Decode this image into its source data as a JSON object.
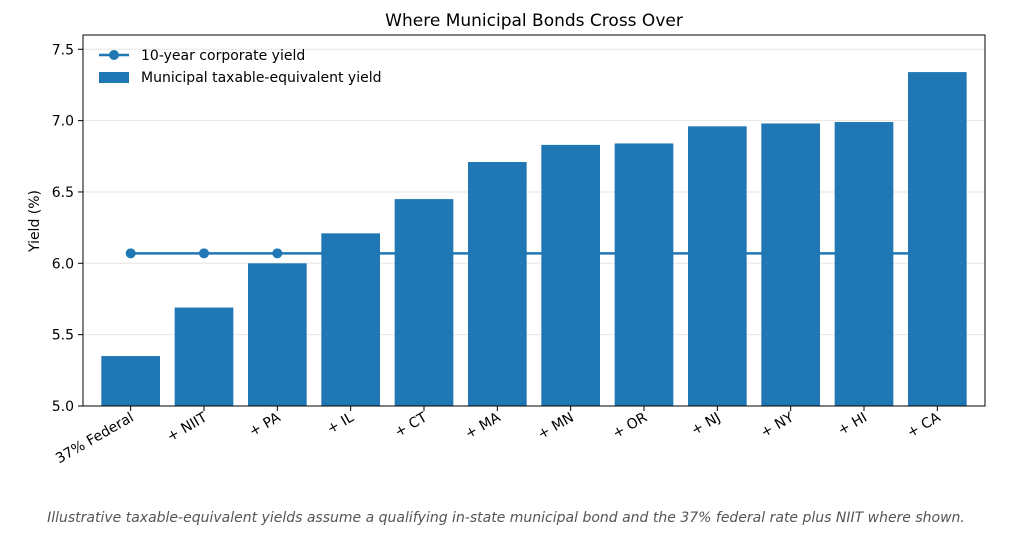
{
  "chart_data": {
    "type": "bar",
    "title": "Where Municipal Bonds Cross Over",
    "xlabel": "",
    "ylabel": "Yield (%)",
    "ylim": [
      5.0,
      7.6
    ],
    "yticks": [
      "5.0",
      "5.5",
      "6.0",
      "6.5",
      "7.0",
      "7.5"
    ],
    "grid": "y",
    "legend_position": "top-left",
    "categories": [
      "37% Federal",
      "+ NIIT",
      "+ PA",
      "+ IL",
      "+ CT",
      "+ MA",
      "+ MN",
      "+ OR",
      "+ NJ",
      "+ NY",
      "+ HI",
      "+ CA"
    ],
    "series": [
      {
        "name": "Municipal taxable-equivalent yield",
        "type": "bar",
        "color": "#1f77b4",
        "values": [
          5.35,
          5.69,
          6.0,
          6.21,
          6.45,
          6.71,
          6.83,
          6.84,
          6.96,
          6.98,
          6.99,
          7.34
        ]
      },
      {
        "name": "10-year corporate yield",
        "type": "line",
        "color": "#1f77b4",
        "value": 6.07,
        "marker_categories": [
          "37% Federal",
          "+ NIIT",
          "+ PA"
        ]
      }
    ]
  },
  "caption": "Illustrative taxable-equivalent yields assume a qualifying in-state municipal bond and the 37% federal rate plus NIIT where shown."
}
